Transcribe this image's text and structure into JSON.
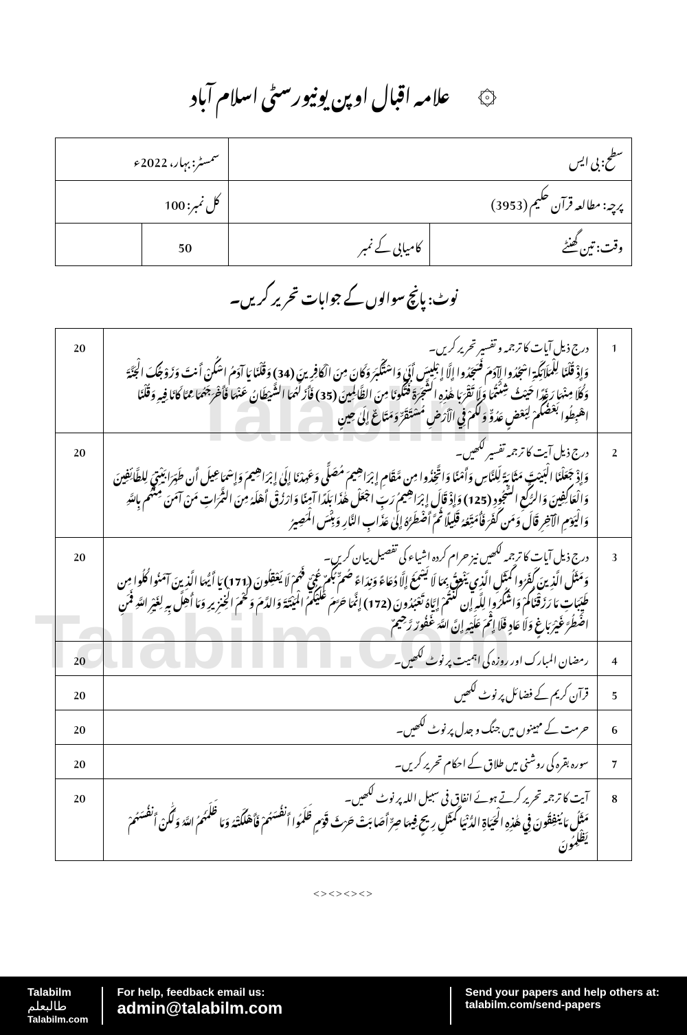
{
  "header": {
    "university": "علامہ اقبال اوپن یونیورسٹی اسلام آباد",
    "logo": "۞"
  },
  "info": {
    "level_label": "سطح: بی ایس",
    "semester_label": "سمسٹر: بہار، 2022ء",
    "paper_label": "پرچہ: مطالعہ قرآن حکیم (3953)",
    "total_marks_label": "کل نمبر: 100",
    "time_label": "وقت: تین گھنٹے",
    "pass_marks_label": "کامیابی کے نمبر",
    "pass_marks": "50"
  },
  "note": "نوٹ: پانچ سوالوں کے جوابات تحریر کریں۔",
  "questions": [
    {
      "num": "1",
      "marks": "20",
      "text": "درج ذیل آیات کا ترجمہ و تفسیر تحریر کریں۔",
      "arabic": "وَإِذْ قُلْنَا لِلْمَلَائِكَةِ اسْجُدُوا لِآدَمَ فَسَجَدُوا إِلَّا إِبْلِيسَ أَبَىٰ وَاسْتَكْبَرَ وَكَانَ مِنَ الْكَافِرِينَ (34) وَقُلْنَا يَا آدَمُ اسْكُنْ أَنتَ وَزَوْجُكَ الْجَنَّةَ وَكُلَا مِنْهَا رَغَدًا حَيْثُ شِئْتُمَا وَلَا تَقْرَبَا هَٰذِهِ الشَّجَرَةَ فَتَكُونَا مِنَ الظَّالِمِينَ (35) فَأَزَلَّهُمَا الشَّيْطَانُ عَنْهَا فَأَخْرَجَهُمَا مِمَّا كَانَا فِيهِ وَقُلْنَا اهْبِطُوا بَعْضُكُمْ لِبَعْضٍ عَدُوٌّ وَلَكُمْ فِي الْأَرْضِ مُسْتَقَرٌّ وَمَتَاعٌ إِلَىٰ حِينٍ"
    },
    {
      "num": "2",
      "marks": "20",
      "text": "درج ذیل آیت کا ترجمہ تفسیر لکھیں۔",
      "arabic": "وَإِذْ جَعَلْنَا الْبَيْتَ مَثَابَةً لِّلنَّاسِ وَأَمْنًا وَاتَّخِذُوا مِن مَّقَامِ إِبْرَاهِيمَ مُصَلًّى وَعَهِدْنَا إِلَىٰ إِبْرَاهِيمَ وَإِسْمَاعِيلَ أَن طَهِّرَا بَيْتِيَ لِلطَّائِفِينَ وَالْعَاكِفِينَ وَالرُّكَّعِ السُّجُودِ (125) وَإِذْ قَالَ إِبْرَاهِيمُ رَبِّ اجْعَلْ هَٰذَا بَلَدًا آمِنًا وَارْزُقْ أَهْلَهُ مِنَ الثَّمَرَاتِ مَنْ آمَنَ مِنْهُم بِاللَّهِ وَالْيَوْمِ الْآخِرِ قَالَ وَمَن كَفَرَ فَأُمَتِّعُهُ قَلِيلًا ثُمَّ أَضْطَرُّهُ إِلَىٰ عَذَابِ النَّارِ وَبِئْسَ الْمَصِيرُ"
    },
    {
      "num": "3",
      "marks": "20",
      "text": "درج ذیل آیات کا ترجمہ لکھیں نیز حرام کردہ اشیاء کی تفصیل بیان کریں۔",
      "arabic": "وَمَثَلُ الَّذِينَ كَفَرُوا كَمَثَلِ الَّذِي يَنْعِقُ بِمَا لَا يَسْمَعُ إِلَّا دُعَاءً وَنِدَاءً صُمٌّ بُكْمٌ عُمْيٌ فَهُمْ لَا يَعْقِلُونَ (171) يَا أَيُّهَا الَّذِينَ آمَنُوا كُلُوا مِن طَيِّبَاتِ مَا رَزَقْنَاكُمْ وَاشْكُرُوا لِلَّهِ إِن كُنتُمْ إِيَّاهُ تَعْبُدُونَ (172) إِنَّمَا حَرَّمَ عَلَيْكُمُ الْمَيْتَةَ وَالدَّمَ وَلَحْمَ الْخِنزِيرِ وَمَا أُهِلَّ بِهِ لِغَيْرِ اللَّهِ فَمَنِ اضْطُرَّ غَيْرَ بَاغٍ وَلَا عَادٍ فَلَا إِثْمَ عَلَيْهِ إِنَّ اللَّهَ غَفُورٌ رَّحِيمٌ"
    },
    {
      "num": "4",
      "marks": "20",
      "text": "رمضان المبارک اور روزہ کی اہمیت پر نوٹ لکھیں۔",
      "arabic": ""
    },
    {
      "num": "5",
      "marks": "20",
      "text": "قرآن کریم کے فضائل پر نوٹ لکھیں",
      "arabic": ""
    },
    {
      "num": "6",
      "marks": "20",
      "text": "حرمت کے مہینوں میں جنگ و جدل پر نوٹ لکھیں۔",
      "arabic": ""
    },
    {
      "num": "7",
      "marks": "20",
      "text": "سورہ بقرہ کی روشنی میں طلاق کے احکام تحریر کریں۔",
      "arabic": ""
    },
    {
      "num": "8",
      "marks": "20",
      "text": "آیت کا ترجمہ تحریر کرتے ہوئے انفاق فی سبیل اللہ پر نوٹ لکھیں۔",
      "arabic": "مَثَلُ مَا يُنفِقُونَ فِي هَٰذِهِ الْحَيَاةِ الدُّنْيَا كَمَثَلِ رِيحٍ فِيهَا صِرٌّ أَصَابَتْ حَرْثَ قَوْمٍ ظَلَمُوا أَنفُسَهُمْ فَأَهْلَكَتْهُ وَمَا ظَلَمَهُمُ اللَّهُ وَلَٰكِنْ أَنفُسَهُمْ يَظْلِمُونَ"
    }
  ],
  "end_marks": "<><><><>",
  "watermark": {
    "text1": "Talabilm",
    "text2": "Talabilm.com"
  },
  "footer": {
    "brand": "Talabilm",
    "brand_urdu": "طالبعلم",
    "site": "Talabilm.com",
    "help_text": "For help, feedback email us:",
    "email": "admin@talabilm.com",
    "send_text": "Send your papers and help others at:",
    "send_url": "talabilm.com/send-papers"
  }
}
